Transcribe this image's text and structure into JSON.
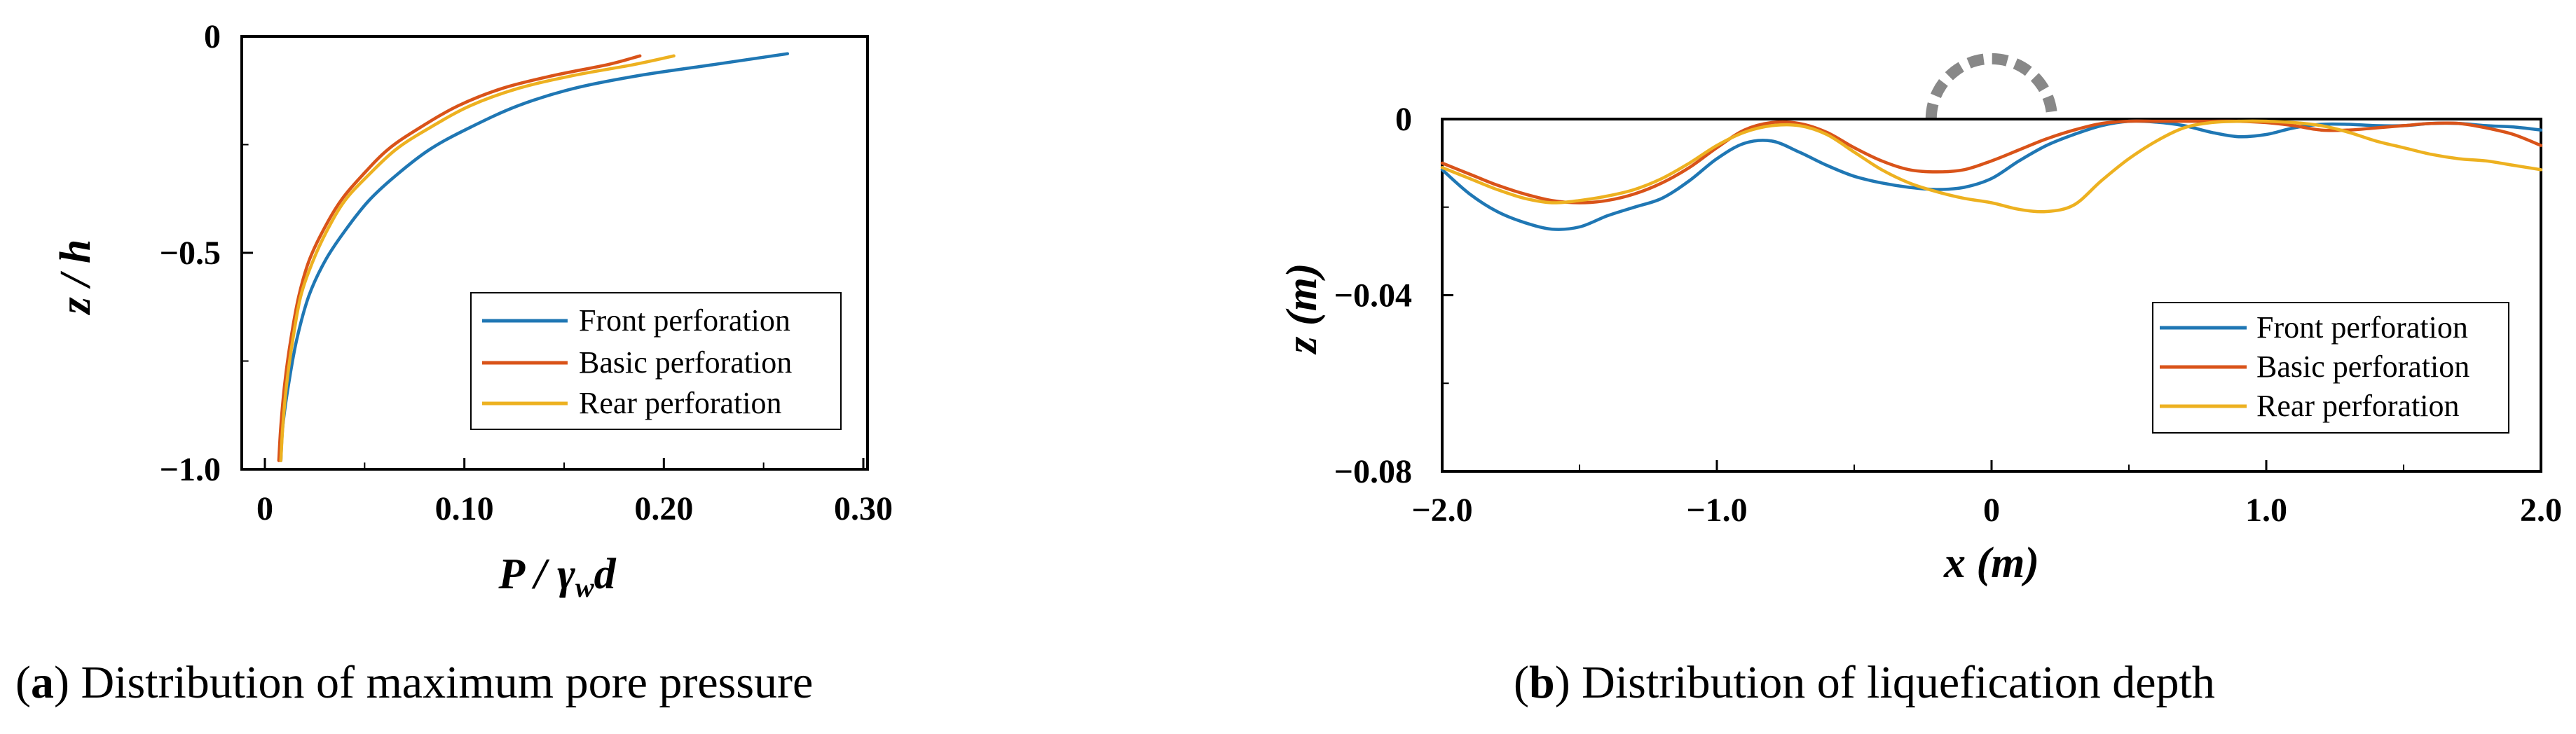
{
  "captions": {
    "a": {
      "letter": "a",
      "text": ") Distribution of maximum pore pressure"
    },
    "b": {
      "letter": "b",
      "text": ") Distribution of liquefication depth"
    }
  },
  "chart_data": [
    {
      "type": "line",
      "xlabel": "P / γwd",
      "ylabel": "z / h",
      "xlim": [
        0,
        0.3
      ],
      "ylim": [
        -1.0,
        0
      ],
      "xticks": [
        0,
        0.1,
        0.2,
        0.3
      ],
      "xtick_labels": [
        "0",
        "0.10",
        "0.20",
        "0.30"
      ],
      "yticks": [
        0,
        -0.5,
        -1.0
      ],
      "ytick_labels": [
        "0",
        "−0.5",
        "−1.0"
      ],
      "legend_position": "lower-right",
      "series": [
        {
          "name": "Front perforation",
          "color": "#1f77b4",
          "x": [
            0.008,
            0.009,
            0.012,
            0.016,
            0.022,
            0.03,
            0.04,
            0.052,
            0.066,
            0.083,
            0.103,
            0.127,
            0.155,
            0.188,
            0.225,
            0.262
          ],
          "y": [
            -0.98,
            -0.9,
            -0.8,
            -0.7,
            -0.6,
            -0.52,
            -0.45,
            -0.38,
            -0.32,
            -0.26,
            -0.21,
            -0.16,
            -0.12,
            -0.09,
            -0.065,
            -0.04
          ]
        },
        {
          "name": "Basic perforation",
          "color": "#d95319",
          "x": [
            0.007,
            0.008,
            0.01,
            0.013,
            0.017,
            0.022,
            0.029,
            0.038,
            0.049,
            0.062,
            0.078,
            0.097,
            0.119,
            0.145,
            0.172,
            0.188
          ],
          "y": [
            -0.98,
            -0.9,
            -0.8,
            -0.7,
            -0.6,
            -0.52,
            -0.45,
            -0.38,
            -0.32,
            -0.26,
            -0.21,
            -0.16,
            -0.12,
            -0.09,
            -0.065,
            -0.045
          ]
        },
        {
          "name": "Rear perforation",
          "color": "#edb120",
          "x": [
            0.008,
            0.009,
            0.011,
            0.014,
            0.018,
            0.024,
            0.031,
            0.04,
            0.052,
            0.066,
            0.083,
            0.103,
            0.127,
            0.155,
            0.185,
            0.205
          ],
          "y": [
            -0.98,
            -0.9,
            -0.8,
            -0.7,
            -0.6,
            -0.52,
            -0.45,
            -0.38,
            -0.32,
            -0.26,
            -0.21,
            -0.16,
            -0.12,
            -0.09,
            -0.065,
            -0.045
          ]
        }
      ]
    },
    {
      "type": "line",
      "xlabel": "x (m)",
      "ylabel": "z (m)",
      "xlim": [
        -2.0,
        2.0
      ],
      "ylim": [
        -0.08,
        0
      ],
      "xticks": [
        -2,
        -1,
        0,
        1,
        2
      ],
      "xtick_labels": [
        "−2.0",
        "−1.0",
        "0",
        "1.0",
        "2.0"
      ],
      "yticks": [
        0,
        -0.04,
        -0.08
      ],
      "ytick_labels": [
        "0",
        "−0.04",
        "−0.08"
      ],
      "legend_position": "lower-right",
      "structure": {
        "shape": "dashed semicircle",
        "center_x": 0,
        "radius": 0.22,
        "color": "#888888"
      },
      "series": [
        {
          "name": "Front perforation",
          "color": "#1f77b4",
          "x": [
            -2.0,
            -1.9,
            -1.8,
            -1.7,
            -1.6,
            -1.5,
            -1.4,
            -1.3,
            -1.2,
            -1.1,
            -1.0,
            -0.9,
            -0.8,
            -0.7,
            -0.6,
            -0.5,
            -0.4,
            -0.3,
            -0.2,
            -0.1,
            0.0,
            0.1,
            0.2,
            0.3,
            0.4,
            0.5,
            0.6,
            0.7,
            0.8,
            0.9,
            1.0,
            1.1,
            1.2,
            1.3,
            1.4,
            1.5,
            1.6,
            1.7,
            1.8,
            1.9,
            2.0
          ],
          "y": [
            -0.0115,
            -0.017,
            -0.021,
            -0.0235,
            -0.025,
            -0.0245,
            -0.022,
            -0.02,
            -0.018,
            -0.014,
            -0.009,
            -0.0055,
            -0.005,
            -0.0075,
            -0.0105,
            -0.013,
            -0.0145,
            -0.0155,
            -0.016,
            -0.0155,
            -0.0135,
            -0.0095,
            -0.006,
            -0.0035,
            -0.0015,
            -0.0005,
            -0.0007,
            -0.0015,
            -0.003,
            -0.004,
            -0.0035,
            -0.002,
            -0.0012,
            -0.0012,
            -0.0015,
            -0.0015,
            -0.001,
            -0.001,
            -0.0015,
            -0.0018,
            -0.0025
          ]
        },
        {
          "name": "Basic perforation",
          "color": "#d95319",
          "x": [
            -2.0,
            -1.9,
            -1.8,
            -1.7,
            -1.6,
            -1.5,
            -1.4,
            -1.3,
            -1.2,
            -1.1,
            -1.0,
            -0.9,
            -0.8,
            -0.7,
            -0.6,
            -0.5,
            -0.4,
            -0.3,
            -0.2,
            -0.1,
            0.0,
            0.1,
            0.2,
            0.3,
            0.4,
            0.5,
            0.6,
            0.7,
            0.8,
            0.9,
            1.0,
            1.1,
            1.2,
            1.3,
            1.4,
            1.5,
            1.6,
            1.7,
            1.8,
            1.9,
            2.0
          ],
          "y": [
            -0.01,
            -0.0125,
            -0.015,
            -0.017,
            -0.0185,
            -0.019,
            -0.0185,
            -0.017,
            -0.0145,
            -0.011,
            -0.0065,
            -0.0025,
            -0.0008,
            -0.001,
            -0.003,
            -0.0065,
            -0.0095,
            -0.0115,
            -0.012,
            -0.0115,
            -0.0095,
            -0.007,
            -0.0045,
            -0.0025,
            -0.001,
            -0.0005,
            -0.0005,
            -0.0005,
            -0.0005,
            -0.0005,
            -0.0008,
            -0.0015,
            -0.0025,
            -0.0025,
            -0.002,
            -0.0015,
            -0.001,
            -0.001,
            -0.002,
            -0.0035,
            -0.006
          ]
        },
        {
          "name": "Rear perforation",
          "color": "#edb120",
          "x": [
            -2.0,
            -1.9,
            -1.8,
            -1.7,
            -1.6,
            -1.5,
            -1.4,
            -1.3,
            -1.2,
            -1.1,
            -1.0,
            -0.9,
            -0.8,
            -0.7,
            -0.6,
            -0.5,
            -0.4,
            -0.3,
            -0.2,
            -0.1,
            0.0,
            0.1,
            0.2,
            0.3,
            0.4,
            0.5,
            0.6,
            0.7,
            0.8,
            0.9,
            1.0,
            1.1,
            1.2,
            1.3,
            1.4,
            1.5,
            1.6,
            1.7,
            1.8,
            1.9,
            2.0
          ],
          "y": [
            -0.011,
            -0.0135,
            -0.016,
            -0.018,
            -0.019,
            -0.0185,
            -0.0175,
            -0.016,
            -0.0135,
            -0.01,
            -0.006,
            -0.003,
            -0.0015,
            -0.0015,
            -0.0035,
            -0.0075,
            -0.0115,
            -0.0145,
            -0.0165,
            -0.018,
            -0.019,
            -0.0205,
            -0.021,
            -0.0195,
            -0.014,
            -0.009,
            -0.005,
            -0.002,
            -0.0008,
            -0.0005,
            -0.0005,
            -0.0008,
            -0.0015,
            -0.003,
            -0.005,
            -0.0065,
            -0.008,
            -0.009,
            -0.0095,
            -0.0105,
            -0.0115
          ]
        }
      ]
    }
  ]
}
